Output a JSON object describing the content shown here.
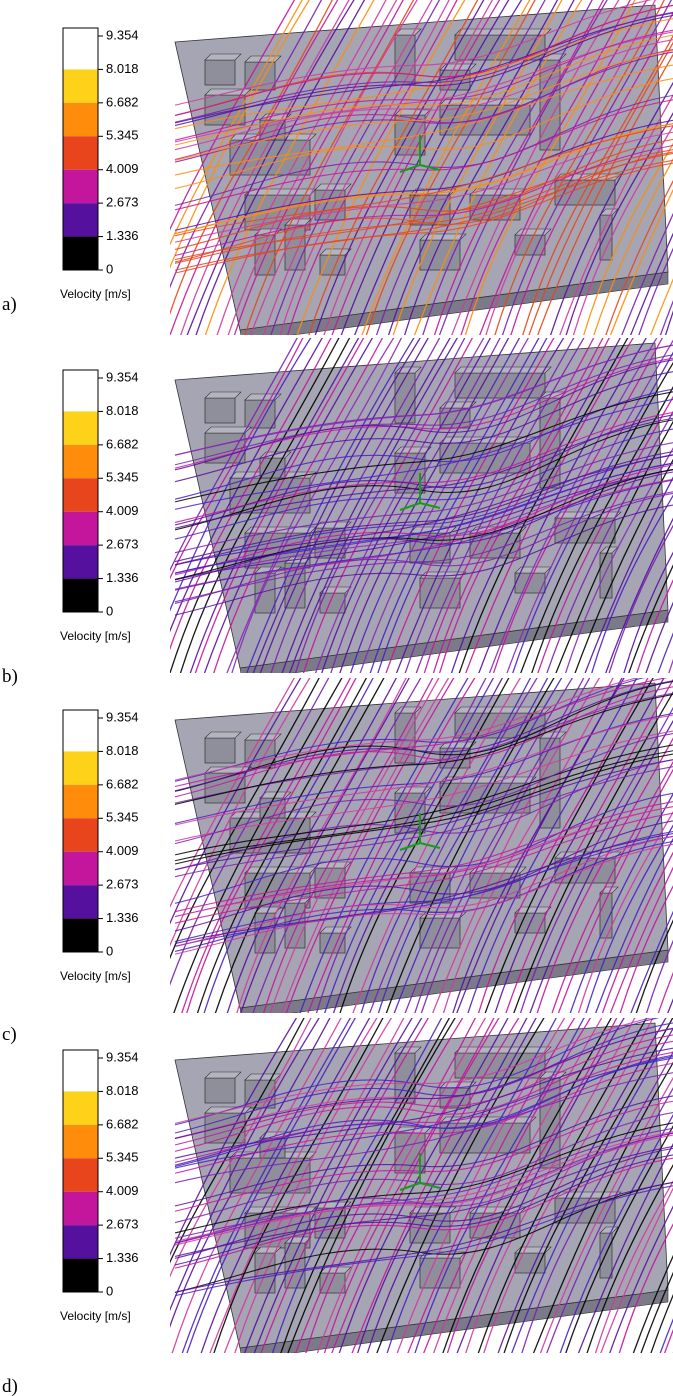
{
  "legend": {
    "ticks": [
      9.354,
      8.018,
      6.682,
      5.345,
      4.009,
      2.673,
      1.336,
      0
    ],
    "colors": [
      "#ffffff",
      "#ffd21a",
      "#ff8c0a",
      "#e8451c",
      "#c4169c",
      "#56109e",
      "#000000"
    ],
    "title": "Velocity [m/s]"
  },
  "panels": [
    {
      "label": "a)",
      "stream_colors": [
        "#c4169c",
        "#d23aa0",
        "#e8451c",
        "#ff8c0a",
        "#7a20b0",
        "#56109e"
      ]
    },
    {
      "label": "b)",
      "stream_colors": [
        "#56109e",
        "#7a20b0",
        "#c4169c",
        "#000000",
        "#4a20c0",
        "#8a2ab8"
      ]
    },
    {
      "label": "c)",
      "stream_colors": [
        "#56109e",
        "#c4169c",
        "#7a20b0",
        "#000000",
        "#d23aa0",
        "#4a20c0"
      ]
    },
    {
      "label": "d)",
      "stream_colors": [
        "#56109e",
        "#c4169c",
        "#7a20b0",
        "#000000",
        "#d23aa0",
        "#4a20c0"
      ]
    }
  ]
}
